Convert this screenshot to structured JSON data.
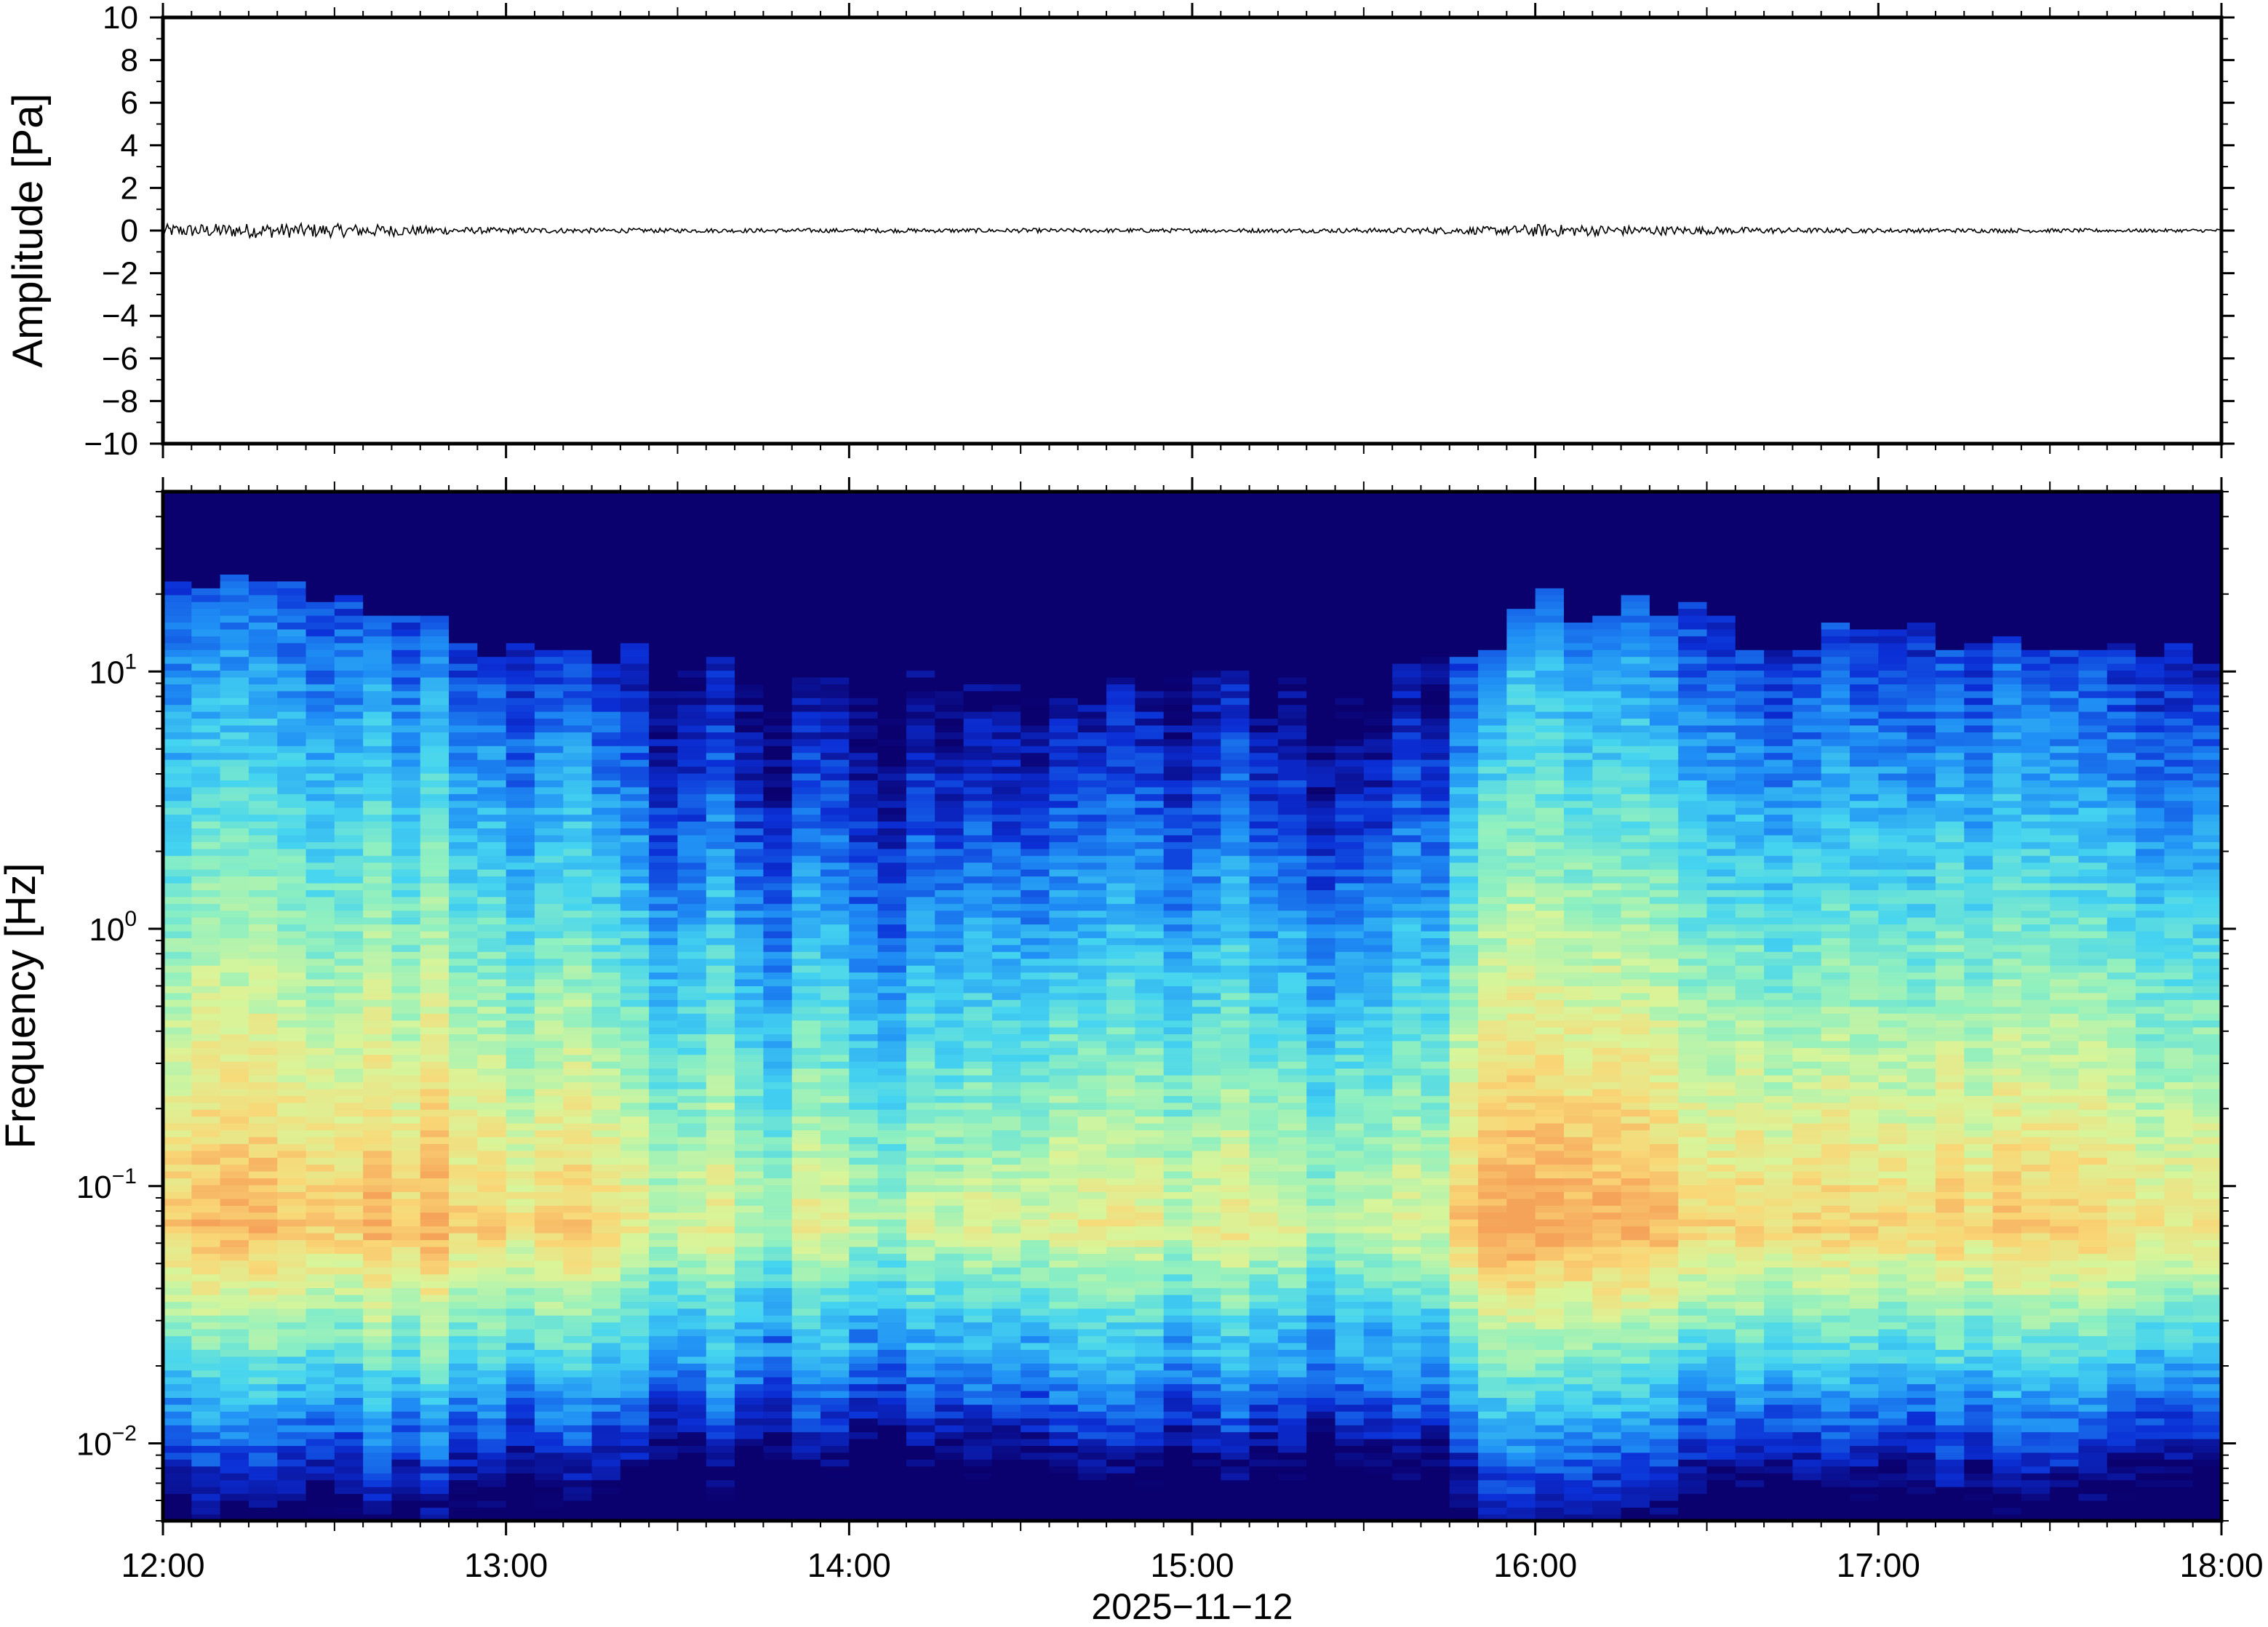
{
  "chart_data": [
    {
      "type": "line",
      "panel": "waveform",
      "ylabel": "Amplitude [Pa]",
      "ylim": [
        -10,
        10
      ],
      "yticks": [
        "10",
        "8",
        "6",
        "4",
        "2",
        "0",
        "−2",
        "−4",
        "−6",
        "−8",
        "−10"
      ],
      "ytick_values": [
        10,
        8,
        6,
        4,
        2,
        0,
        -2,
        -4,
        -6,
        -8,
        -10
      ],
      "xlim": [
        "12:00",
        "18:00"
      ],
      "grid": false,
      "series": [
        {
          "color": "#000000",
          "envelope": {
            "x_hours": [
              0.0,
              0.3,
              0.6,
              0.9,
              1.2,
              1.5,
              1.8,
              2.1,
              2.4,
              2.7,
              3.0,
              3.3,
              3.6,
              3.9,
              4.0,
              4.2,
              4.5,
              4.8,
              5.1,
              5.4,
              5.7,
              6.0
            ],
            "amplitude_pa": [
              0.3,
              0.35,
              0.3,
              0.15,
              0.12,
              0.1,
              0.1,
              0.1,
              0.1,
              0.1,
              0.1,
              0.1,
              0.12,
              0.2,
              0.3,
              0.25,
              0.18,
              0.12,
              0.1,
              0.1,
              0.08,
              0.08
            ]
          }
        }
      ]
    },
    {
      "type": "heatmap",
      "panel": "spectrogram",
      "ylabel": "Frequency [Hz]",
      "xlabel": "2025−11−12",
      "xticks": [
        "12:00",
        "13:00",
        "14:00",
        "15:00",
        "16:00",
        "17:00",
        "18:00"
      ],
      "yscale": "log",
      "ylim": [
        0.005,
        50
      ],
      "yticks": [
        {
          "base": "10",
          "exp": "1",
          "value": 10
        },
        {
          "base": "10",
          "exp": "0",
          "value": 1
        },
        {
          "base": "10",
          "exp": "−1",
          "value": 0.1
        },
        {
          "base": "10",
          "exp": "−2",
          "value": 0.01
        }
      ],
      "colormap": [
        "#0a006e",
        "#0b2fd6",
        "#1f8ff5",
        "#45d4f0",
        "#8ff0c0",
        "#d8f59a",
        "#f9d877",
        "#f6a35a"
      ],
      "grid": false,
      "upper_cutoff_hz": {
        "x_hours": [
          0.0,
          0.5,
          1.0,
          1.5,
          2.0,
          2.5,
          3.0,
          3.5,
          3.8,
          4.0,
          4.3,
          4.6,
          5.0,
          5.5,
          6.0
        ],
        "hz": [
          25,
          20,
          11,
          12,
          10,
          8,
          9,
          9,
          11,
          18,
          19,
          14,
          14,
          13,
          12
        ]
      }
    }
  ]
}
